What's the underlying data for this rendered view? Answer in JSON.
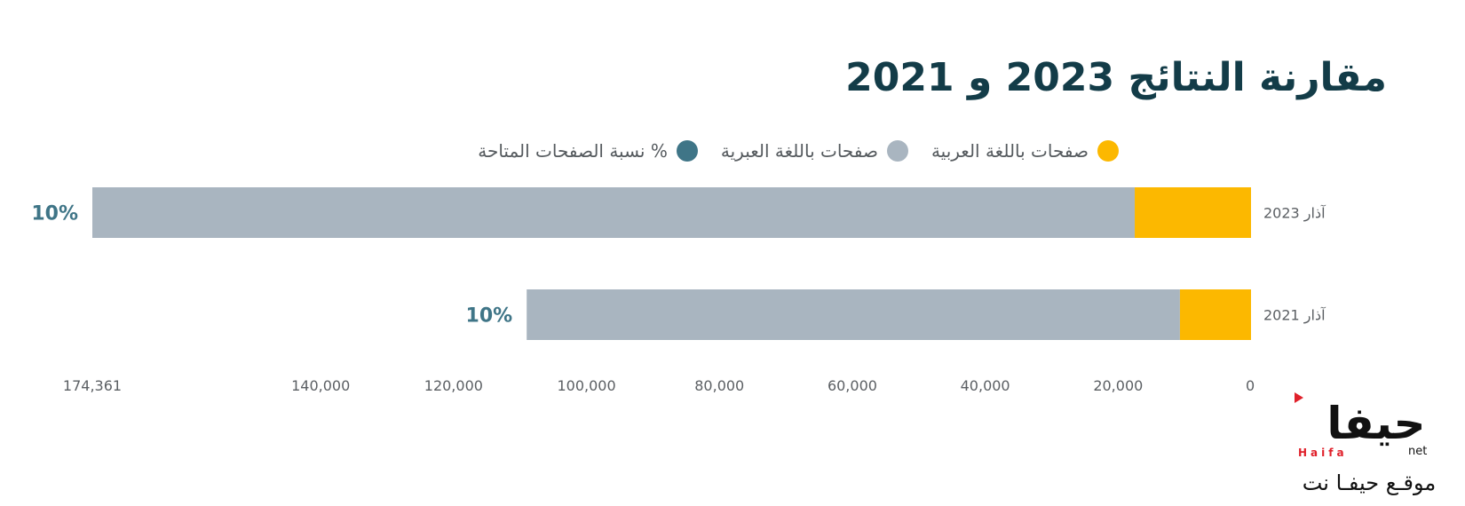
{
  "chart_data": {
    "type": "bar",
    "orientation": "horizontal",
    "stacked": true,
    "title": "مقارنة النتائج 2023 و 2021",
    "categories": [
      "آذار 2023",
      "آذار 2021"
    ],
    "series": [
      {
        "name": "صفحات باللغة العربية",
        "values": [
          17500,
          10700
        ],
        "color": "#fcb800"
      },
      {
        "name": "صفحات باللغة العبرية",
        "values": [
          156861,
          98300
        ],
        "color": "#a9b5c0"
      }
    ],
    "percent_series": {
      "name": "% نسبة الصفحات المتاحة",
      "values": [
        "10%",
        "10%"
      ],
      "color": "#3f7587"
    },
    "x_ticks": [
      {
        "value": 0,
        "label": "0"
      },
      {
        "value": 20000,
        "label": "20,000"
      },
      {
        "value": 40000,
        "label": "40,000"
      },
      {
        "value": 60000,
        "label": "60,000"
      },
      {
        "value": 80000,
        "label": "80,000"
      },
      {
        "value": 100000,
        "label": "100,000"
      },
      {
        "value": 120000,
        "label": "120,000"
      },
      {
        "value": 140000,
        "label": "140,000"
      },
      {
        "value": 174361,
        "label": "174,361"
      }
    ],
    "xlim": [
      0,
      174361
    ],
    "x_direction": "right-to-left",
    "legend_position": "top",
    "grid": false
  },
  "logo": {
    "main": "حيفا",
    "latin": "Haifa",
    "net": "net",
    "subtitle": "موقـع حيفـا نت",
    "color": "#e0212b"
  }
}
